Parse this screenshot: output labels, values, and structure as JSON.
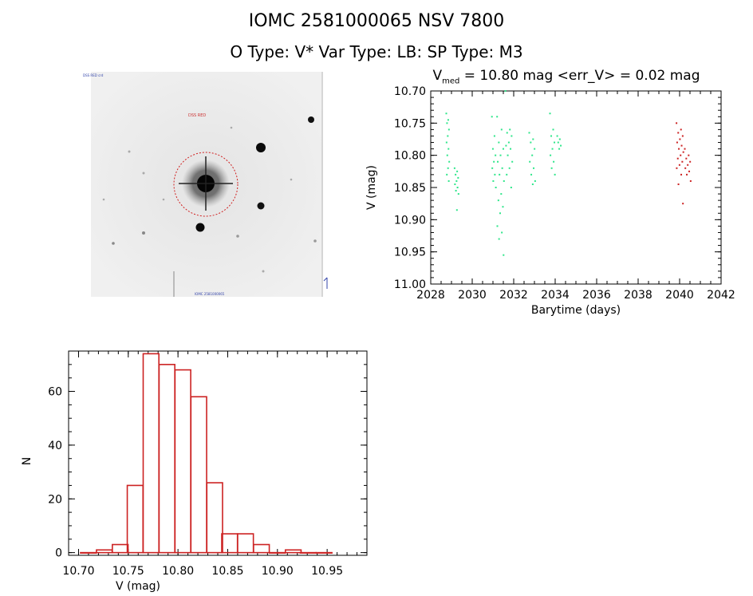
{
  "header": {
    "title_line1": "IOMC 2581000065    NSV  7800",
    "title_line2": "O Type: V*  Var Type: LB:  SP Type: M3"
  },
  "image_panel": {
    "labels": [
      "DSS RED crd",
      "DSS RED",
      "IOMC 2581000065"
    ]
  },
  "chart_data": [
    {
      "type": "scatter",
      "title_v": "V",
      "title_sub": "med",
      "title_rest": " = 10.80 mag <err_V> = 0.02 mag",
      "xlabel": "Barytime (days)",
      "ylabel": "V (mag)",
      "xlim": [
        2028,
        2042
      ],
      "ylim": [
        11.0,
        10.7
      ],
      "y_inverted": true,
      "xticks": [
        2028,
        2030,
        2032,
        2034,
        2036,
        2038,
        2040,
        2042
      ],
      "yticks": [
        10.7,
        10.75,
        10.8,
        10.85,
        10.9,
        10.95,
        11.0
      ],
      "colors": {
        "early": "#2ee68a",
        "late": "#cc2222"
      },
      "groups": [
        {
          "color": "early",
          "x_range": [
            2028.75,
            2028.9
          ],
          "y": [
            10.735,
            10.745,
            10.75,
            10.76,
            10.77,
            10.78,
            10.79,
            10.8,
            10.81,
            10.82,
            10.83,
            10.84
          ]
        },
        {
          "color": "early",
          "x_range": [
            2029.15,
            2029.35
          ],
          "y": [
            10.82,
            10.825,
            10.83,
            10.835,
            10.84,
            10.845,
            10.85,
            10.855,
            10.86,
            10.885
          ]
        },
        {
          "color": "early",
          "x_range": [
            2030.95,
            2031.15
          ],
          "y": [
            10.74,
            10.77,
            10.79,
            10.8,
            10.81,
            10.82,
            10.83,
            10.84,
            10.85
          ]
        },
        {
          "color": "early",
          "x_range": [
            2031.2,
            2031.55
          ],
          "y": [
            10.74,
            10.76,
            10.78,
            10.79,
            10.8,
            10.81,
            10.82,
            10.83,
            10.84,
            10.86,
            10.87,
            10.88,
            10.89,
            10.91,
            10.92,
            10.93,
            10.955
          ]
        },
        {
          "color": "early",
          "x_range": [
            2031.6,
            2031.95
          ],
          "y": [
            10.7,
            10.76,
            10.765,
            10.77,
            10.78,
            10.785,
            10.79,
            10.8,
            10.81,
            10.82,
            10.83,
            10.85
          ]
        },
        {
          "color": "early",
          "x_range": [
            2032.75,
            2033.05
          ],
          "y": [
            10.765,
            10.775,
            10.78,
            10.79,
            10.8,
            10.81,
            10.82,
            10.83,
            10.84,
            10.845
          ]
        },
        {
          "color": "early",
          "x_range": [
            2033.75,
            2034.0
          ],
          "y": [
            10.735,
            10.76,
            10.77,
            10.78,
            10.79,
            10.8,
            10.81,
            10.82,
            10.83
          ]
        },
        {
          "color": "early",
          "x_range": [
            2034.1,
            2034.3
          ],
          "y": [
            10.77,
            10.775,
            10.78,
            10.785,
            10.79
          ]
        },
        {
          "color": "late",
          "x_range": [
            2039.85,
            2040.2
          ],
          "y": [
            10.75,
            10.76,
            10.765,
            10.77,
            10.775,
            10.78,
            10.785,
            10.79,
            10.795,
            10.8,
            10.805,
            10.81,
            10.815,
            10.82,
            10.83,
            10.845,
            10.875
          ]
        },
        {
          "color": "late",
          "x_range": [
            2040.25,
            2040.55
          ],
          "y": [
            10.79,
            10.8,
            10.805,
            10.81,
            10.815,
            10.82,
            10.825,
            10.83,
            10.84
          ]
        }
      ]
    },
    {
      "type": "bar",
      "style": "histogram",
      "xlabel": "V (mag)",
      "ylabel": "N",
      "xlim": [
        10.69,
        10.99
      ],
      "ylim": [
        -1,
        75
      ],
      "xticks": [
        "10.70",
        "10.75",
        "10.80",
        "10.85",
        "10.90",
        "10.95"
      ],
      "yticks": [
        0,
        20,
        40,
        60
      ],
      "bin_width": 0.0158,
      "bin_left_edges": [
        10.702,
        10.718,
        10.734,
        10.749,
        10.765,
        10.781,
        10.797,
        10.813,
        10.829,
        10.844,
        10.86,
        10.876,
        10.892,
        10.908,
        10.923,
        10.939
      ],
      "values": [
        0,
        1,
        3,
        25,
        74,
        70,
        68,
        58,
        26,
        7,
        7,
        3,
        0,
        1,
        0,
        0
      ],
      "bar_color": "#cc2222"
    }
  ]
}
